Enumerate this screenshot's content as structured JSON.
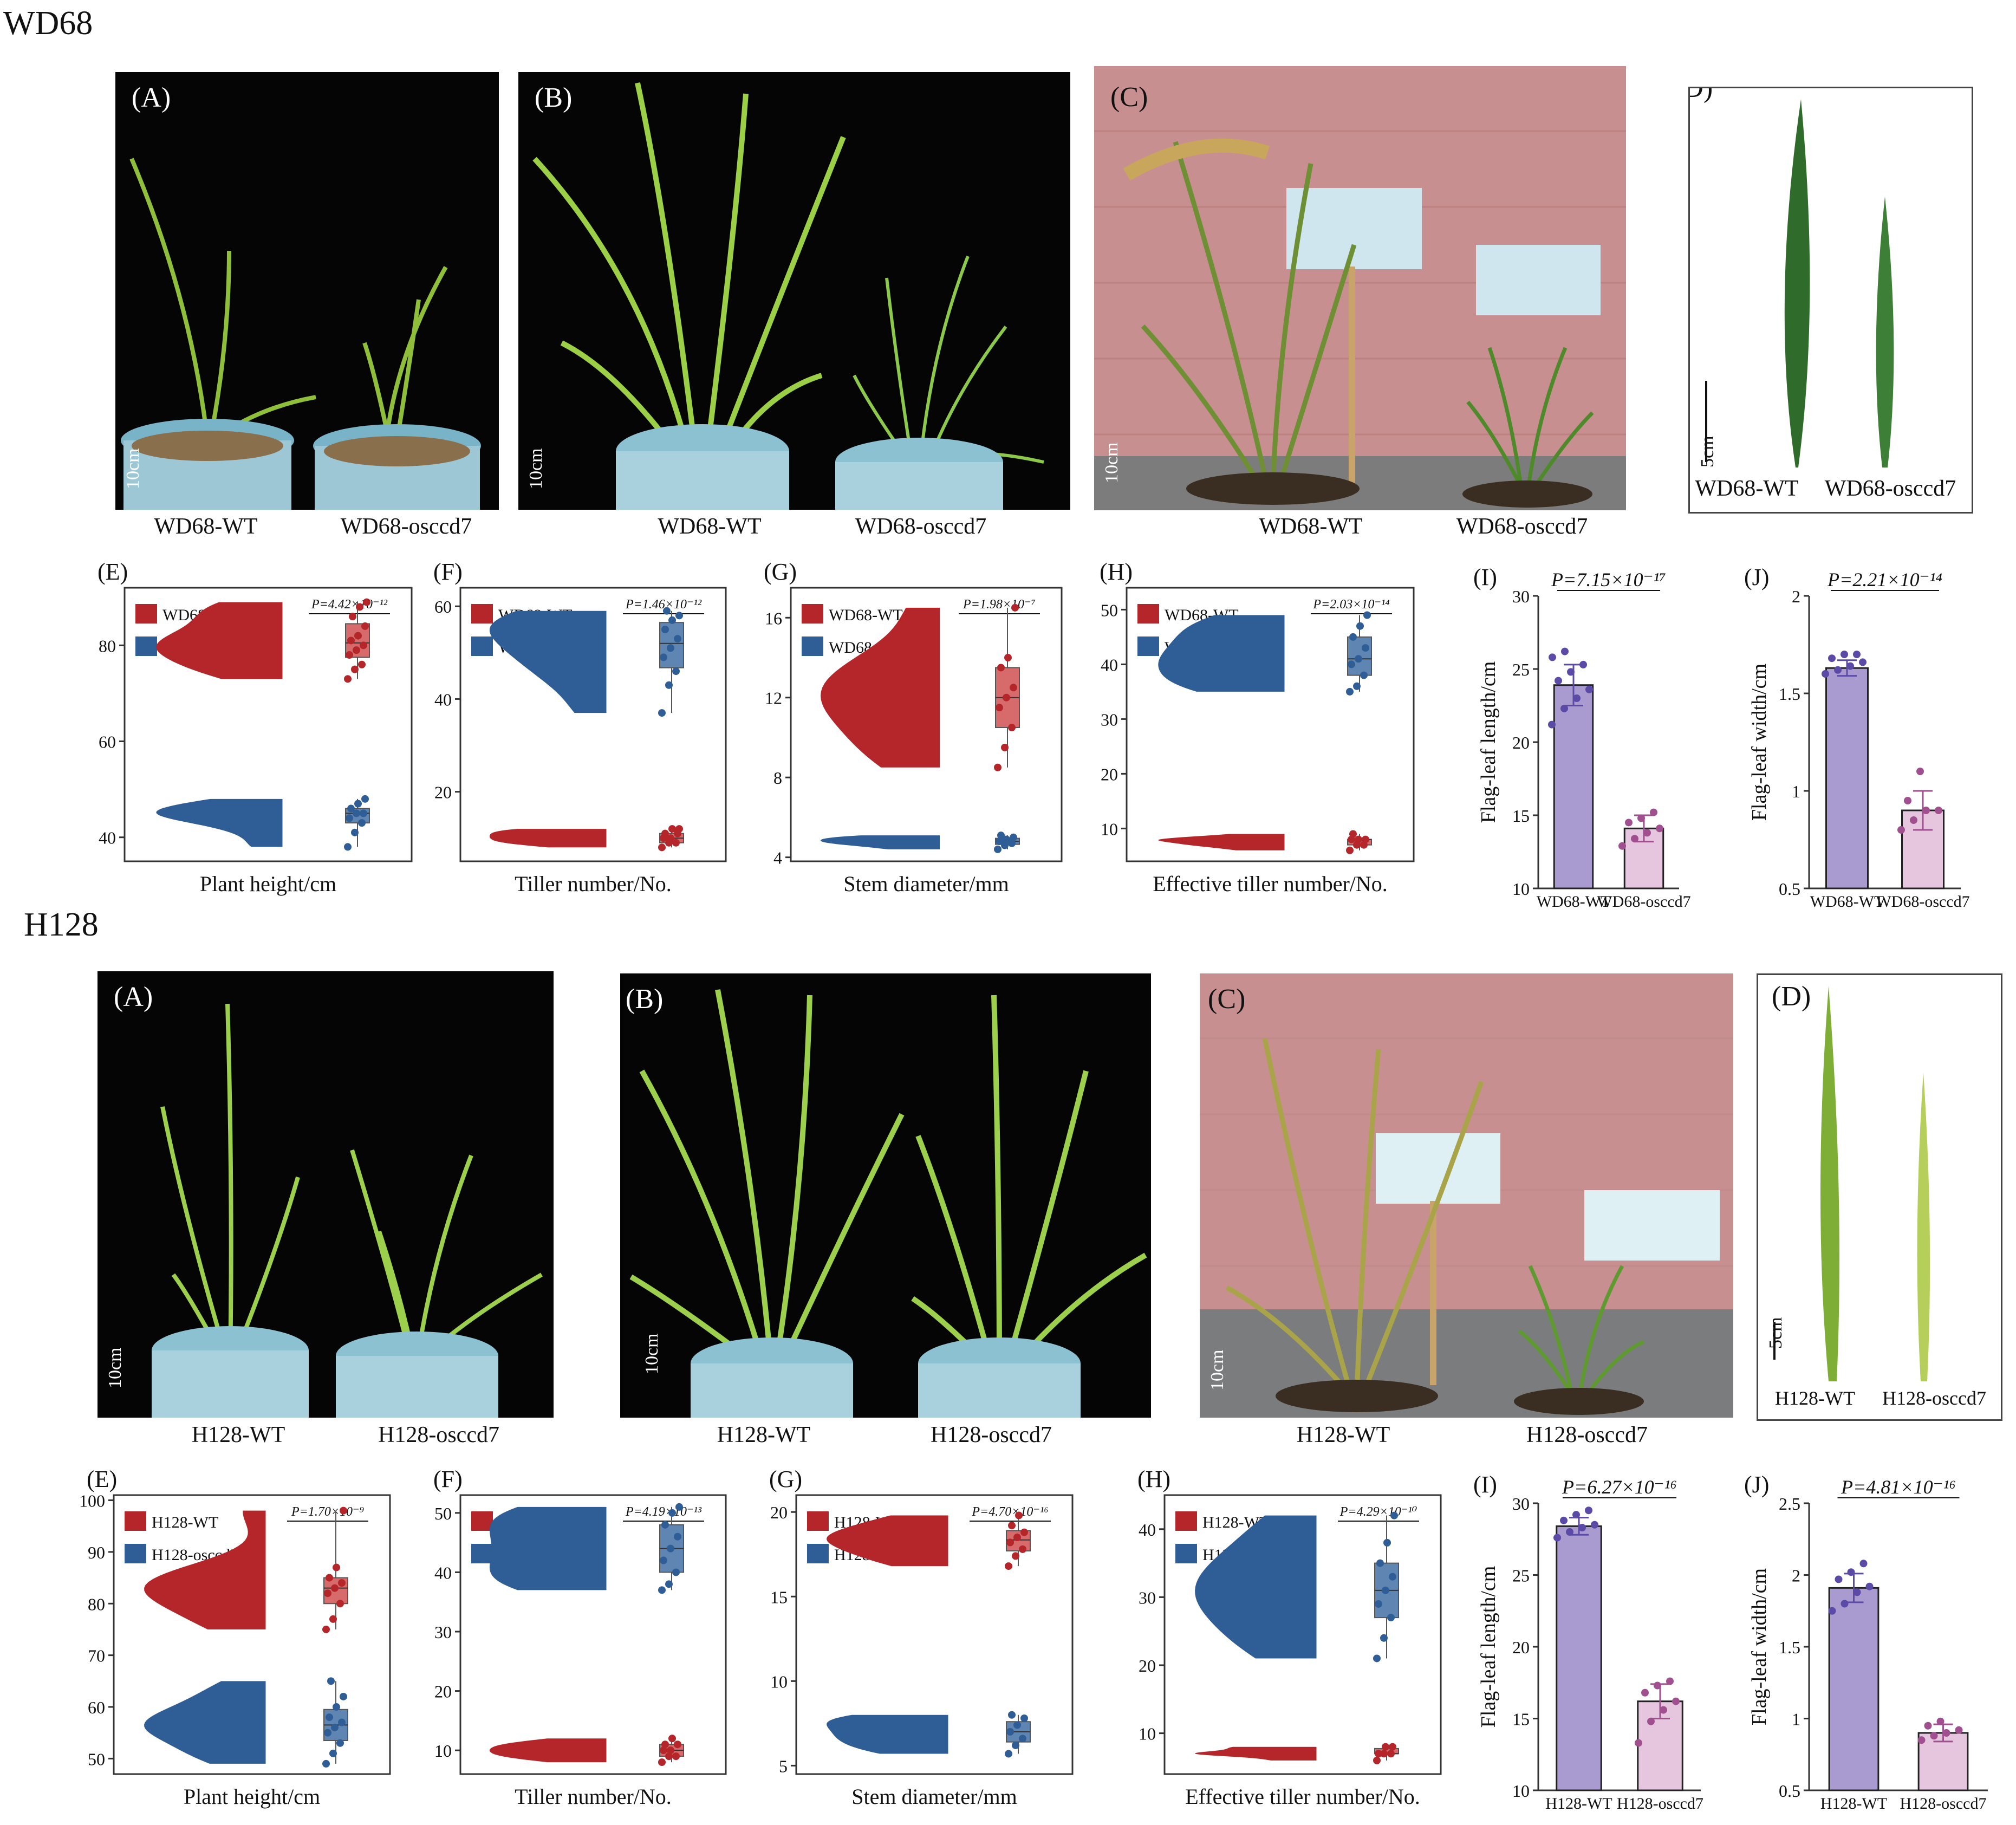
{
  "sections": [
    {
      "title": "WD68",
      "photos": [
        {
          "label": "(A)",
          "scale": "10cm",
          "captions": [
            "WD68-WT",
            "WD68-osccd7"
          ]
        },
        {
          "label": "(B)",
          "scale": "10cm",
          "captions": [
            "WD68-WT",
            "WD68-osccd7"
          ]
        },
        {
          "label": "(C)",
          "scale": "10cm",
          "captions": [
            "WD68-WT",
            "WD68-osccd7"
          ]
        },
        {
          "label": "(D)",
          "scale": "5cm",
          "captions": [
            "WD68-WT",
            "WD68-osccd7"
          ]
        }
      ]
    },
    {
      "title": "H128",
      "photos": [
        {
          "label": "(A)",
          "scale": "10cm",
          "captions": [
            "H128-WT",
            "H128-osccd7"
          ]
        },
        {
          "label": "(B)",
          "scale": "10cm",
          "captions": [
            "H128-WT",
            "H128-osccd7"
          ]
        },
        {
          "label": "(C)",
          "scale": "10cm",
          "captions": [
            "H128-WT",
            "H128-osccd7"
          ]
        },
        {
          "label": "(D)",
          "scale": "5cm",
          "captions": [
            "H128-WT",
            "H128-osccd7"
          ]
        }
      ]
    }
  ],
  "colors": {
    "wt_red": "#b5262b",
    "mut_blue": "#2f5d95",
    "box_red": "#d76b6b",
    "box_blue": "#5f86b3",
    "bar_purple": "#a99bcf",
    "bar_pink": "#e6c6df",
    "dot_purple": "#5b4aa6",
    "dot_magenta": "#a0508f"
  },
  "chart_data": [
    {
      "id": "wd68-E",
      "type": "raincloud",
      "panel": "(E)",
      "xlabel": "Plant height/cm",
      "legend": [
        "WD68-WT",
        "WD68-osccd7"
      ],
      "pvalue": "P=4.42×10⁻¹²",
      "yticks": [
        40,
        60,
        80
      ],
      "ylim": [
        35,
        92
      ],
      "series": [
        {
          "name": "WD68-WT",
          "values": [
            73,
            75,
            76,
            78,
            79,
            80,
            81,
            82,
            84,
            86,
            88,
            89
          ]
        },
        {
          "name": "WD68-osccd7",
          "values": [
            38,
            41,
            43,
            44,
            45,
            45,
            46,
            47,
            48
          ]
        }
      ]
    },
    {
      "id": "wd68-F",
      "type": "raincloud",
      "panel": "(F)",
      "xlabel": "Tiller number/No.",
      "legend": [
        "WD68-WT",
        "WD68-osccd7"
      ],
      "pvalue": "P=1.46×10⁻¹²",
      "yticks": [
        20,
        40,
        60
      ],
      "ylim": [
        5,
        64
      ],
      "series": [
        {
          "name": "WD68-WT",
          "values": [
            8,
            9,
            9,
            10,
            10,
            11,
            11,
            12,
            12
          ]
        },
        {
          "name": "WD68-osccd7",
          "values": [
            37,
            43,
            46,
            49,
            51,
            53,
            55,
            57,
            58,
            59
          ]
        }
      ]
    },
    {
      "id": "wd68-G",
      "type": "raincloud",
      "panel": "(G)",
      "xlabel": "Stem diameter/mm",
      "legend": [
        "WD68-WT",
        "WD68-osccd7"
      ],
      "pvalue": "P=1.98×10⁻⁷",
      "yticks": [
        4,
        8,
        12,
        16
      ],
      "ylim": [
        3.8,
        17.5
      ],
      "series": [
        {
          "name": "WD68-WT",
          "values": [
            8.5,
            9.5,
            10.5,
            11.5,
            12,
            12.5,
            13.5,
            14,
            16.5
          ]
        },
        {
          "name": "WD68-osccd7",
          "values": [
            4.4,
            4.6,
            4.7,
            4.8,
            4.9,
            5.0,
            5.1
          ]
        }
      ]
    },
    {
      "id": "wd68-H",
      "type": "raincloud",
      "panel": "(H)",
      "xlabel": "Effective tiller number/No.",
      "legend": [
        "WD68-WT",
        "WD68-osccd7"
      ],
      "pvalue": "P=2.03×10⁻¹⁴",
      "yticks": [
        10,
        20,
        30,
        40,
        50
      ],
      "ylim": [
        4,
        54
      ],
      "series": [
        {
          "name": "WD68-WT",
          "values": [
            6,
            7,
            7,
            8,
            8,
            8,
            9
          ]
        },
        {
          "name": "WD68-osccd7",
          "values": [
            35,
            36,
            38,
            40,
            41,
            43,
            45,
            47,
            49
          ]
        }
      ]
    },
    {
      "id": "wd68-I",
      "type": "bar",
      "panel": "(I)",
      "ylabel": "Flag-leaf length/cm",
      "categories": [
        "WD68-WT",
        "WD68-osccd7"
      ],
      "values": [
        23.9,
        14.1
      ],
      "errors": [
        1.4,
        0.9
      ],
      "pvalue": "P=7.15×10⁻¹⁷",
      "yticks": [
        10,
        15,
        20,
        25,
        30
      ],
      "ylim": [
        10,
        30
      ],
      "points": [
        [
          21.2,
          22.3,
          23.0,
          23.6,
          24.2,
          24.8,
          25.3,
          25.8,
          26.2
        ],
        [
          12.9,
          13.4,
          13.8,
          14.1,
          14.5,
          14.8,
          15.2
        ]
      ]
    },
    {
      "id": "wd68-J",
      "type": "bar",
      "panel": "(J)",
      "ylabel": "Flag-leaf width/cm",
      "categories": [
        "WD68-WT",
        "WD68-osccd7"
      ],
      "values": [
        1.63,
        0.9
      ],
      "errors": [
        0.04,
        0.1
      ],
      "pvalue": "P=2.21×10⁻¹⁴",
      "yticks": [
        0.5,
        1.0,
        1.5,
        2.0
      ],
      "ylim": [
        0.5,
        2.0
      ],
      "points": [
        [
          1.6,
          1.62,
          1.64,
          1.66,
          1.68,
          1.7,
          1.7
        ],
        [
          0.8,
          0.85,
          0.9,
          0.9,
          0.95,
          1.1
        ]
      ]
    },
    {
      "id": "h128-E",
      "type": "raincloud",
      "panel": "(E)",
      "xlabel": "Plant height/cm",
      "legend": [
        "H128-WT",
        "H128-osccd7"
      ],
      "pvalue": "P=1.70×10⁻⁹",
      "yticks": [
        50,
        60,
        70,
        80,
        90,
        100
      ],
      "ylim": [
        47,
        101
      ],
      "series": [
        {
          "name": "H128-WT",
          "values": [
            75,
            77,
            80,
            82,
            83,
            84,
            85,
            87,
            98
          ]
        },
        {
          "name": "H128-osccd7",
          "values": [
            49,
            51,
            53,
            55,
            56,
            57,
            58,
            60,
            62,
            65
          ]
        }
      ]
    },
    {
      "id": "h128-F",
      "type": "raincloud",
      "panel": "(F)",
      "xlabel": "Tiller number/No.",
      "legend": [
        "H128-WT",
        "H128-osccd7"
      ],
      "pvalue": "P=4.19×10⁻¹³",
      "yticks": [
        10,
        20,
        30,
        40,
        50
      ],
      "ylim": [
        6,
        53
      ],
      "series": [
        {
          "name": "H128-WT",
          "values": [
            8,
            9,
            9,
            10,
            10,
            11,
            11,
            12
          ]
        },
        {
          "name": "H128-osccd7",
          "values": [
            37,
            38,
            40,
            42,
            44,
            46,
            48,
            50,
            51
          ]
        }
      ]
    },
    {
      "id": "h128-G",
      "type": "raincloud",
      "panel": "(G)",
      "xlabel": "Stem diameter/mm",
      "legend": [
        "H128-WT",
        "H128-osccd7"
      ],
      "pvalue": "P=4.70×10⁻¹⁶",
      "yticks": [
        5,
        10,
        15,
        20
      ],
      "ylim": [
        4.5,
        21
      ],
      "series": [
        {
          "name": "H128-WT",
          "values": [
            16.8,
            17.4,
            17.8,
            18.2,
            18.5,
            18.8,
            19.2,
            19.8
          ]
        },
        {
          "name": "H128-osccd7",
          "values": [
            5.7,
            6.2,
            6.6,
            7.0,
            7.4,
            7.8,
            8.0
          ]
        }
      ]
    },
    {
      "id": "h128-H",
      "type": "raincloud",
      "panel": "(H)",
      "xlabel": "Effective tiller number/No.",
      "legend": [
        "H128-WT",
        "H128-osccd7"
      ],
      "pvalue": "P=4.29×10⁻¹⁰",
      "yticks": [
        10,
        20,
        30,
        40
      ],
      "ylim": [
        4,
        45
      ],
      "series": [
        {
          "name": "H128-WT",
          "values": [
            6,
            7,
            7,
            7,
            8,
            8
          ]
        },
        {
          "name": "H128-osccd7",
          "values": [
            21,
            24,
            27,
            29,
            31,
            33,
            35,
            38,
            42
          ]
        }
      ]
    },
    {
      "id": "h128-I",
      "type": "bar",
      "panel": "(I)",
      "ylabel": "Flag-leaf length/cm",
      "categories": [
        "H128-WT",
        "H128-osccd7"
      ],
      "values": [
        28.4,
        16.2
      ],
      "errors": [
        0.6,
        1.2
      ],
      "pvalue": "P=6.27×10⁻¹⁶",
      "yticks": [
        10,
        15,
        20,
        25,
        30
      ],
      "ylim": [
        10,
        30
      ],
      "points": [
        [
          27.6,
          28.0,
          28.3,
          28.5,
          28.8,
          29.2,
          29.5
        ],
        [
          13.3,
          14.8,
          15.6,
          16.2,
          16.8,
          17.3,
          17.6
        ]
      ]
    },
    {
      "id": "h128-J",
      "type": "bar",
      "panel": "(J)",
      "ylabel": "Flag-leaf width/cm",
      "categories": [
        "H128-WT",
        "H128-osccd7"
      ],
      "values": [
        1.91,
        0.9
      ],
      "errors": [
        0.1,
        0.06
      ],
      "pvalue": "P=4.81×10⁻¹⁶",
      "yticks": [
        0.5,
        1.0,
        1.5,
        2.0,
        2.5
      ],
      "ylim": [
        0.5,
        2.5
      ],
      "points": [
        [
          1.75,
          1.8,
          1.88,
          1.92,
          1.97,
          2.02,
          2.08
        ],
        [
          0.85,
          0.88,
          0.9,
          0.92,
          0.95,
          0.98
        ]
      ]
    }
  ]
}
